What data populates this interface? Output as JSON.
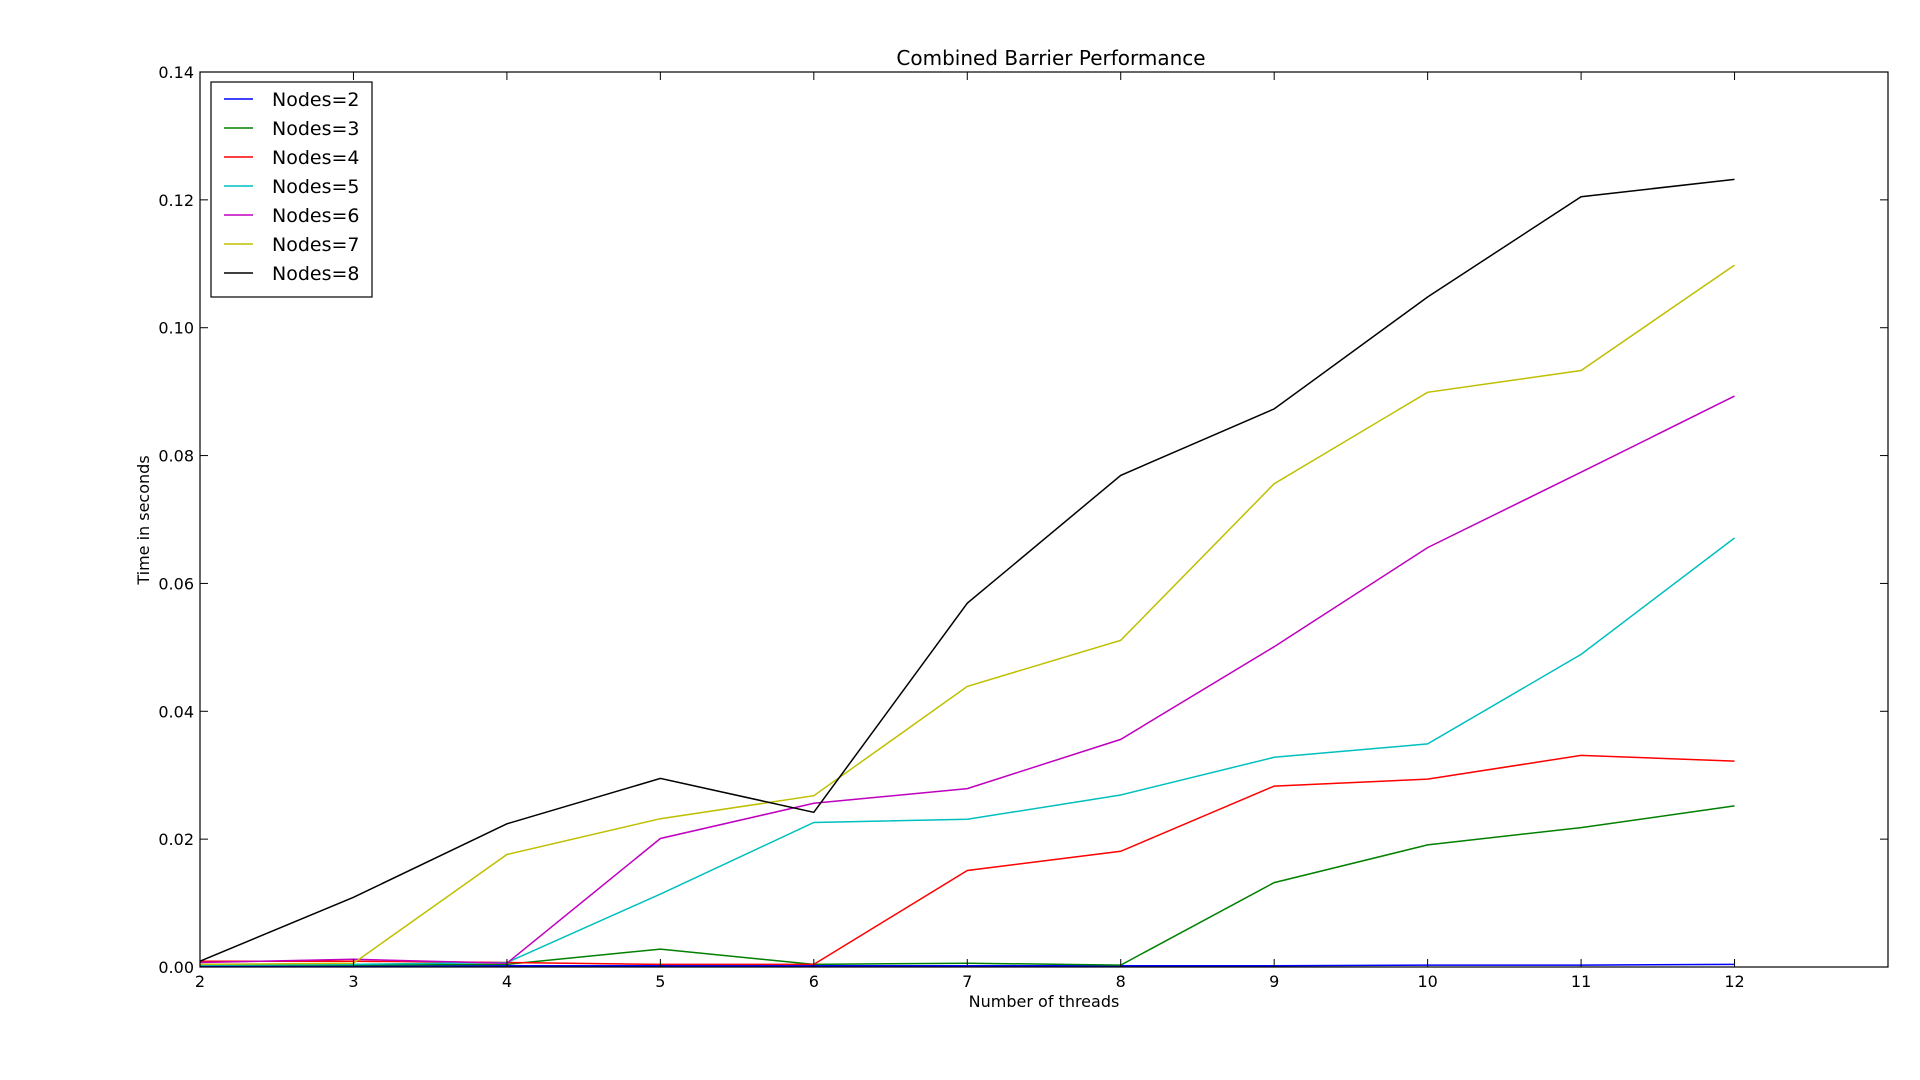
{
  "chart_data": {
    "type": "line",
    "title": "Combined Barrier Performance",
    "xlabel": "Number of threads",
    "ylabel": "Time in seconds",
    "xlim": [
      2,
      13
    ],
    "ylim": [
      0,
      0.14
    ],
    "x": [
      2,
      3,
      4,
      5,
      6,
      7,
      8,
      9,
      10,
      11,
      12
    ],
    "xticks": [
      "2",
      "3",
      "4",
      "5",
      "6",
      "7",
      "8",
      "9",
      "10",
      "11",
      "12"
    ],
    "yticks": [
      "0.00",
      "0.02",
      "0.04",
      "0.06",
      "0.08",
      "0.10",
      "0.12",
      "0.14"
    ],
    "grid": false,
    "legend_position": "top-left",
    "series": [
      {
        "name": "Nodes=2",
        "color": "#0000ff",
        "values": [
          0.0002,
          0.0002,
          0.0002,
          0.0002,
          0.0002,
          0.0002,
          0.0002,
          0.0002,
          0.0003,
          0.0003,
          0.0004
        ]
      },
      {
        "name": "Nodes=3",
        "color": "#008000",
        "values": [
          0.0003,
          0.0003,
          0.0004,
          0.0028,
          0.0004,
          0.0006,
          0.0003,
          0.0132,
          0.0191,
          0.0218,
          0.0252
        ]
      },
      {
        "name": "Nodes=4",
        "color": "#ff0000",
        "values": [
          0.0009,
          0.0009,
          0.0007,
          0.0004,
          0.0004,
          0.0151,
          0.0181,
          0.0283,
          0.0294,
          0.0331,
          0.0322
        ]
      },
      {
        "name": "Nodes=5",
        "color": "#00bfbf",
        "values": [
          0.0003,
          0.0004,
          0.0007,
          0.0114,
          0.0226,
          0.0231,
          0.0269,
          0.0328,
          0.0349,
          0.0489,
          0.0671
        ]
      },
      {
        "name": "Nodes=6",
        "color": "#bf00bf",
        "values": [
          0.0007,
          0.0012,
          0.0006,
          0.0201,
          0.0256,
          0.0279,
          0.0356,
          0.0501,
          0.0656,
          0.0774,
          0.0893
        ]
      },
      {
        "name": "Nodes=7",
        "color": "#bfbf00",
        "values": [
          0.0004,
          0.0006,
          0.0176,
          0.0232,
          0.0268,
          0.0439,
          0.0511,
          0.0756,
          0.0899,
          0.0933,
          0.1098
        ]
      },
      {
        "name": "Nodes=8",
        "color": "#000000",
        "values": [
          0.0009,
          0.0109,
          0.0224,
          0.0295,
          0.0242,
          0.0569,
          0.0769,
          0.0873,
          0.1048,
          0.1205,
          0.1232
        ]
      }
    ]
  }
}
